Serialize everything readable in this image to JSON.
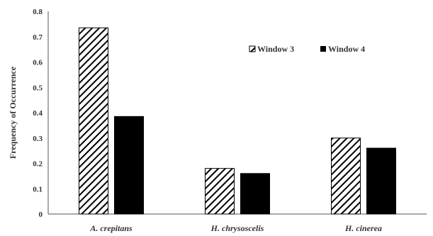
{
  "chart_data": {
    "type": "bar",
    "title": "",
    "xlabel": "",
    "ylabel": "Frequency of Occurrence",
    "ylim": [
      0,
      0.8
    ],
    "yticks": [
      "0",
      "0.1",
      "0.2",
      "0.3",
      "0.4",
      "0.5",
      "0.6",
      "0.7",
      "0.8"
    ],
    "categories": [
      "A. crepitans",
      "H. chrysoscelis",
      "H. cinerea"
    ],
    "series": [
      {
        "name": "Window 3",
        "values": [
          0.735,
          0.18,
          0.3
        ],
        "fill": "hatched"
      },
      {
        "name": "Window 4",
        "values": [
          0.385,
          0.16,
          0.26
        ],
        "fill": "#000000"
      }
    ],
    "legend": {
      "placement": "top-right"
    },
    "grid": false
  }
}
